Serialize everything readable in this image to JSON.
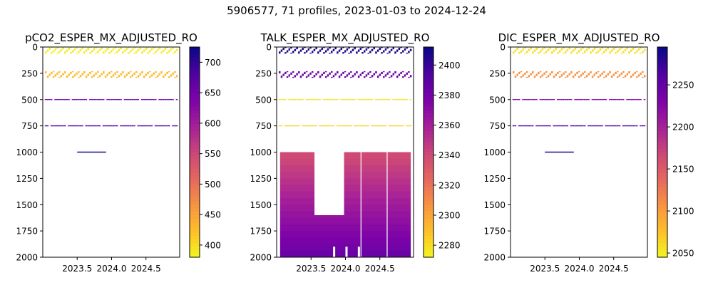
{
  "figure": {
    "suptitle": "5906577, 71 profiles, 2023-01-03 to 2024-12-24"
  },
  "colors": {
    "axis": "#000000",
    "background": "#ffffff",
    "colormap": "plasma_r"
  },
  "chart_data": [
    {
      "type": "heatmap",
      "title": "pCO2_ESPER_MX_ADJUSTED_RO",
      "xlabel": "",
      "ylabel": "",
      "x_ticks": [
        "2023.5",
        "2024.0",
        "2024.5"
      ],
      "xlim": [
        2023.0,
        2024.99
      ],
      "ylim": [
        2000,
        0
      ],
      "y_ticks": [
        0,
        250,
        500,
        750,
        1000,
        1250,
        1500,
        1750,
        2000
      ],
      "colorbar": {
        "range": [
          380,
          725
        ],
        "ticks": [
          400,
          450,
          500,
          550,
          600,
          650,
          700
        ]
      },
      "grid": false,
      "layers": [
        {
          "depth_range": [
            0,
            60
          ],
          "value": 390,
          "gaps": []
        },
        {
          "depth_range": [
            230,
            290
          ],
          "value": 430,
          "gaps": []
        },
        {
          "depth_range": [
            495,
            505
          ],
          "value": 650,
          "gaps": []
        },
        {
          "depth_range": [
            745,
            755
          ],
          "value": 690,
          "gaps": []
        },
        {
          "depth_range": [
            995,
            1005
          ],
          "value": 725,
          "time_range": [
            2023.5,
            2023.92
          ]
        }
      ]
    },
    {
      "type": "heatmap",
      "title": "TALK_ESPER_MX_ADJUSTED_RO",
      "xlabel": "",
      "ylabel": "",
      "x_ticks": [
        "2023.5",
        "2024.0",
        "2024.5"
      ],
      "xlim": [
        2023.0,
        2024.99
      ],
      "ylim": [
        2000,
        0
      ],
      "y_ticks": [
        0,
        250,
        500,
        750,
        1000,
        1250,
        1500,
        1750,
        2000
      ],
      "colorbar": {
        "range": [
          2272,
          2412
        ],
        "ticks": [
          2280,
          2300,
          2320,
          2340,
          2360,
          2380,
          2400
        ]
      },
      "grid": false,
      "layers": [
        {
          "depth_range": [
            0,
            60
          ],
          "value": 2408,
          "gaps": []
        },
        {
          "depth_range": [
            230,
            290
          ],
          "value": 2385,
          "gaps": []
        },
        {
          "depth_range": [
            495,
            505
          ],
          "value": 2278,
          "gaps": []
        },
        {
          "depth_range": [
            745,
            755
          ],
          "value": 2285,
          "gaps": []
        }
      ],
      "deep_block": {
        "depth_range": [
          1000,
          2000
        ],
        "value_top": 2340,
        "value_bottom": 2385,
        "missing_time_range": [
          2023.55,
          2023.98
        ],
        "missing_depth_range": [
          1000,
          1600
        ]
      }
    },
    {
      "type": "heatmap",
      "title": "DIC_ESPER_MX_ADJUSTED_RO",
      "xlabel": "",
      "ylabel": "",
      "x_ticks": [
        "2023.5",
        "2024.0",
        "2024.5"
      ],
      "xlim": [
        2023.0,
        2024.99
      ],
      "ylim": [
        2000,
        0
      ],
      "y_ticks": [
        0,
        250,
        500,
        750,
        1000,
        1250,
        1500,
        1750,
        2000
      ],
      "colorbar": {
        "range": [
          2045,
          2295
        ],
        "ticks": [
          2050,
          2100,
          2150,
          2200,
          2250
        ]
      },
      "grid": false,
      "layers": [
        {
          "depth_range": [
            0,
            60
          ],
          "value": 2060,
          "gaps": []
        },
        {
          "depth_range": [
            230,
            290
          ],
          "value": 2110,
          "gaps": []
        },
        {
          "depth_range": [
            495,
            505
          ],
          "value": 2230,
          "gaps": []
        },
        {
          "depth_range": [
            745,
            755
          ],
          "value": 2270,
          "gaps": []
        },
        {
          "depth_range": [
            995,
            1005
          ],
          "value": 2290,
          "time_range": [
            2023.5,
            2023.92
          ]
        }
      ]
    }
  ]
}
